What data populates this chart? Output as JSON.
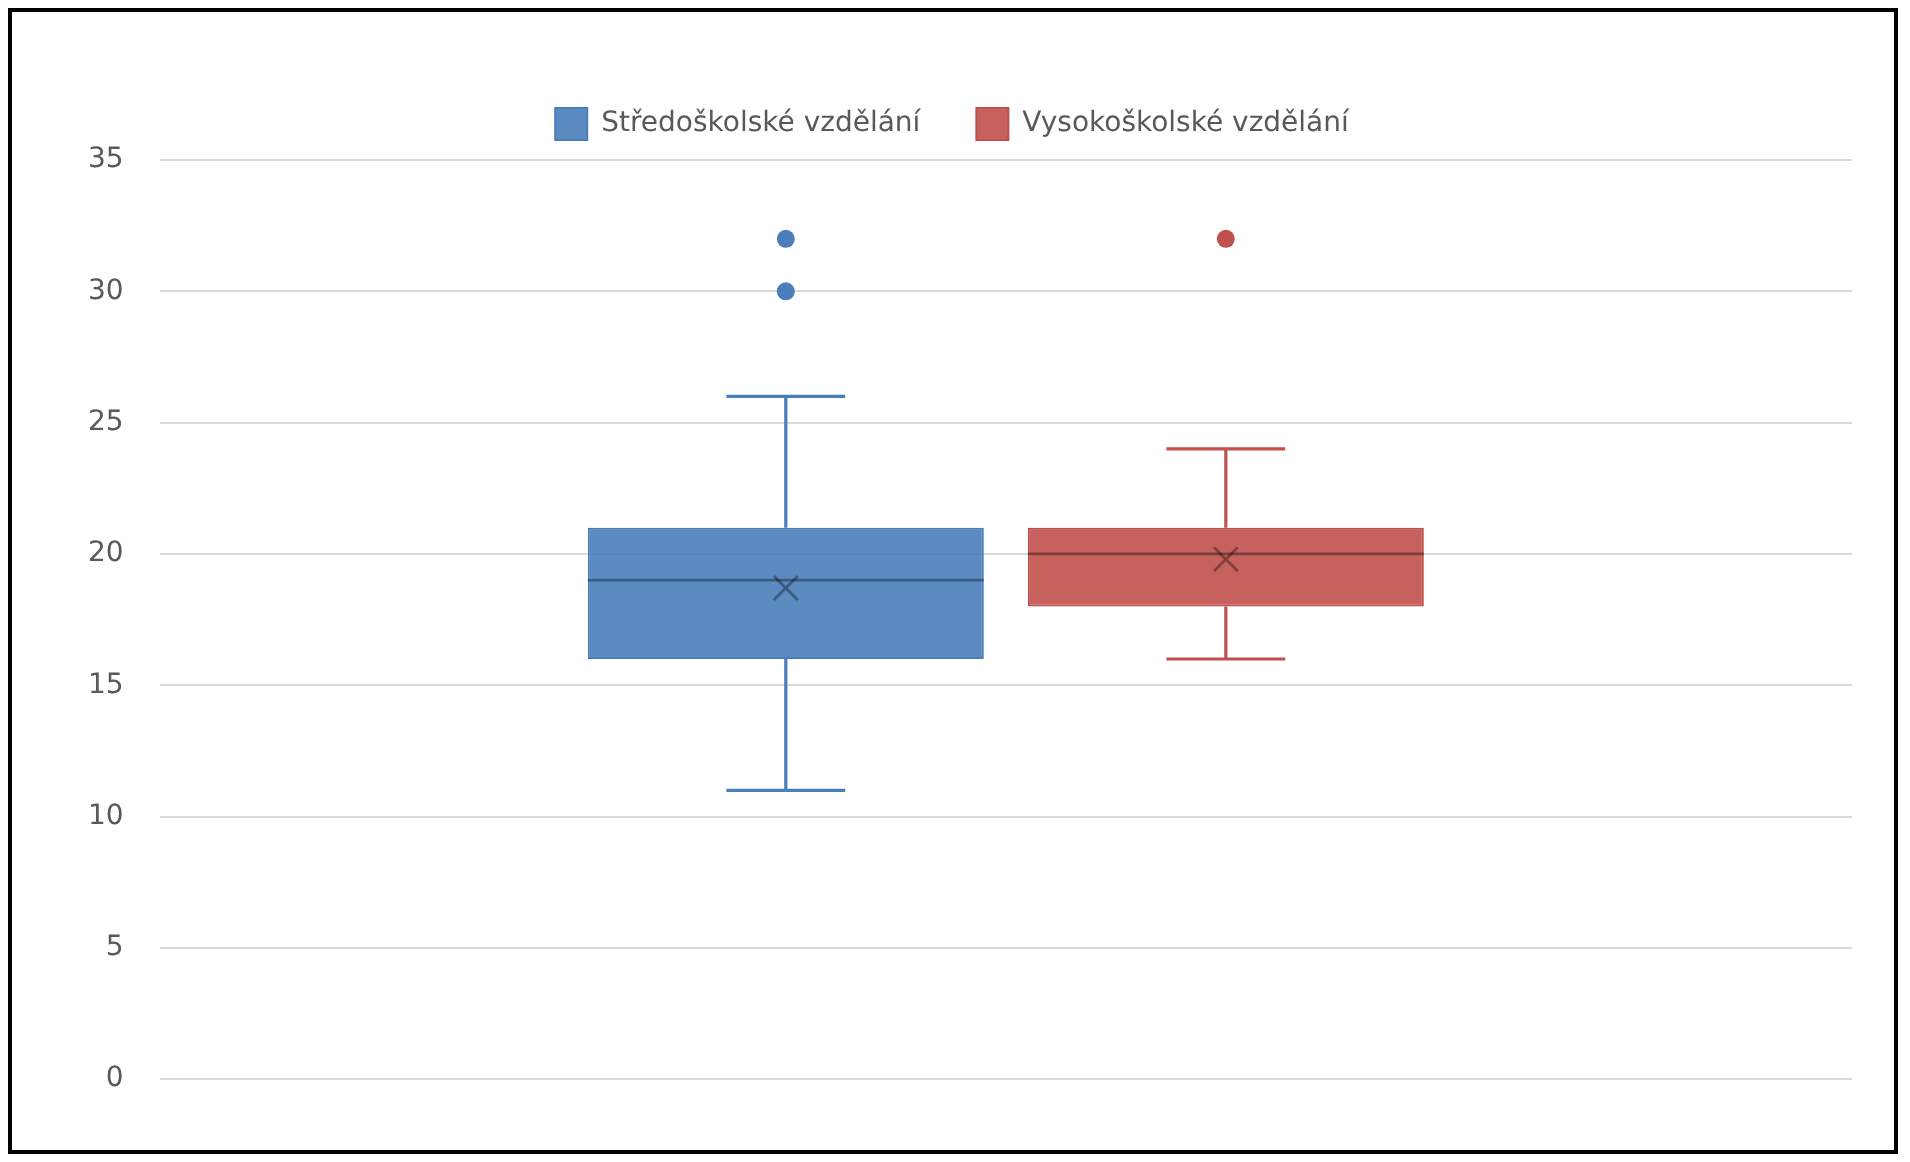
{
  "chart_data": {
    "type": "box",
    "categories": [
      null
    ],
    "series": [
      {
        "name": "Středoškolské vzdělání",
        "color": "#4a7ebb",
        "boxes": [
          {
            "low": 11,
            "q1": 16,
            "median": 19,
            "q3": 21,
            "high": 26,
            "mean": 18.7,
            "outliers": [
              30,
              32
            ]
          }
        ]
      },
      {
        "name": "Vysokoškolské vzdělání",
        "color": "#c0504d",
        "boxes": [
          {
            "low": 16,
            "q1": 18,
            "median": 20,
            "q3": 21,
            "high": 24,
            "mean": 19.8,
            "outliers": [
              32
            ]
          }
        ]
      }
    ],
    "ylim": [
      0,
      35
    ],
    "yticks": [
      0,
      5,
      10,
      15,
      20,
      25,
      30,
      35
    ],
    "grid": "y",
    "legend": "top"
  }
}
